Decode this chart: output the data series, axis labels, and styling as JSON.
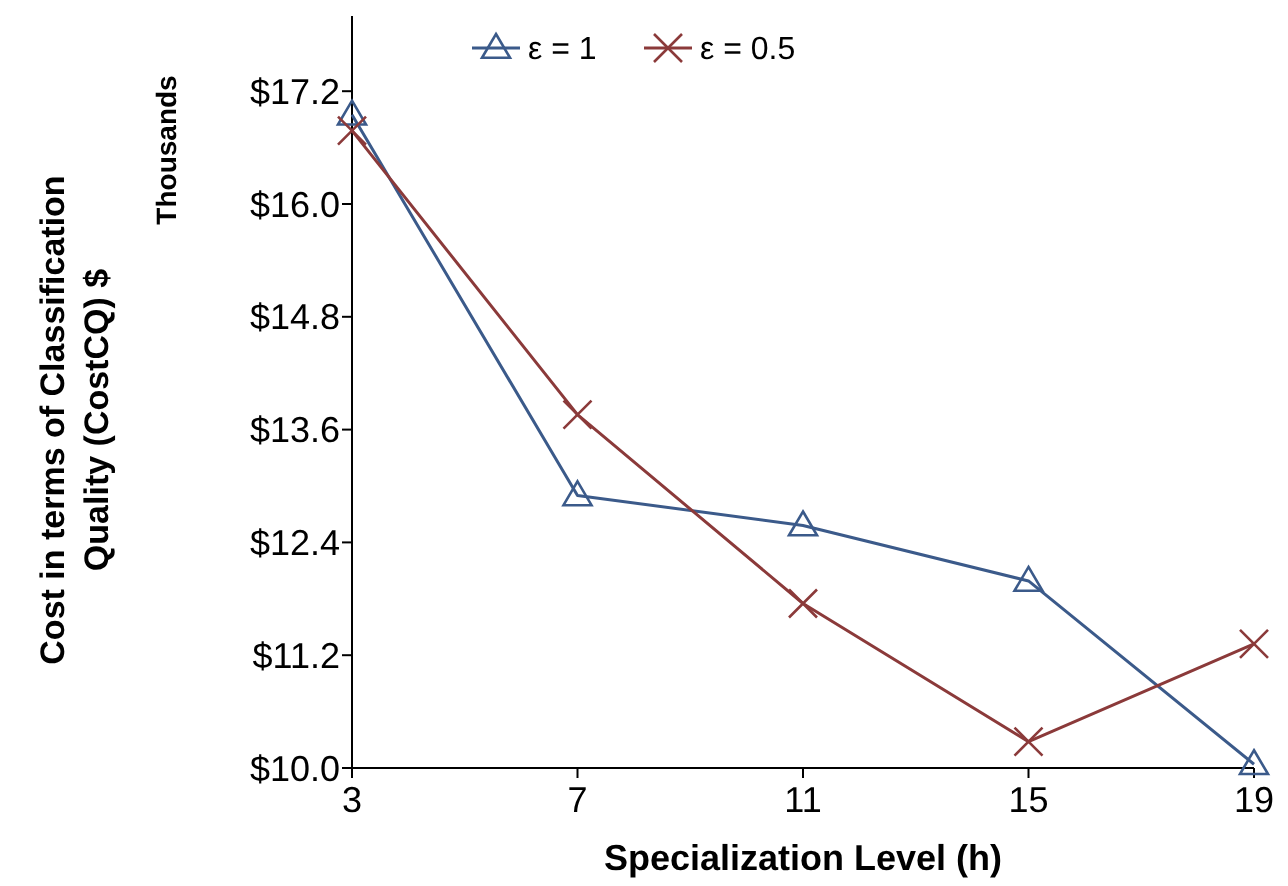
{
  "chart_data": {
    "type": "line",
    "xlabel": "Specialization Level (h)",
    "ylabel": "Cost in terms of Classification Quality (CostCQ) $",
    "annotations": [
      "Thousands"
    ],
    "x": [
      3,
      7,
      11,
      15,
      19
    ],
    "xlim": [
      3,
      19
    ],
    "xticks": [
      3,
      7,
      11,
      15,
      19
    ],
    "ylim": [
      10,
      18
    ],
    "yticks": [
      {
        "value": 10,
        "label": "$10.0"
      },
      {
        "value": 11.2,
        "label": "$11.2"
      },
      {
        "value": 12.4,
        "label": "$12.4"
      },
      {
        "value": 13.6,
        "label": "$13.6"
      },
      {
        "value": 14.8,
        "label": "$14.8"
      },
      {
        "value": 16,
        "label": "$16.0"
      },
      {
        "value": 17.2,
        "label": "$17.2"
      }
    ],
    "grid": false,
    "legend": "top",
    "line_style": "solid",
    "series": [
      {
        "name": "ε = 1",
        "color": "#3b5a8a",
        "marker": "triangle",
        "values": [
          16.95,
          12.9,
          12.58,
          11.99,
          10.04
        ]
      },
      {
        "name": "ε = 0.5",
        "color": "#8b3a3a",
        "marker": "cross",
        "values": [
          16.78,
          13.76,
          11.75,
          10.28,
          11.32
        ]
      }
    ]
  }
}
